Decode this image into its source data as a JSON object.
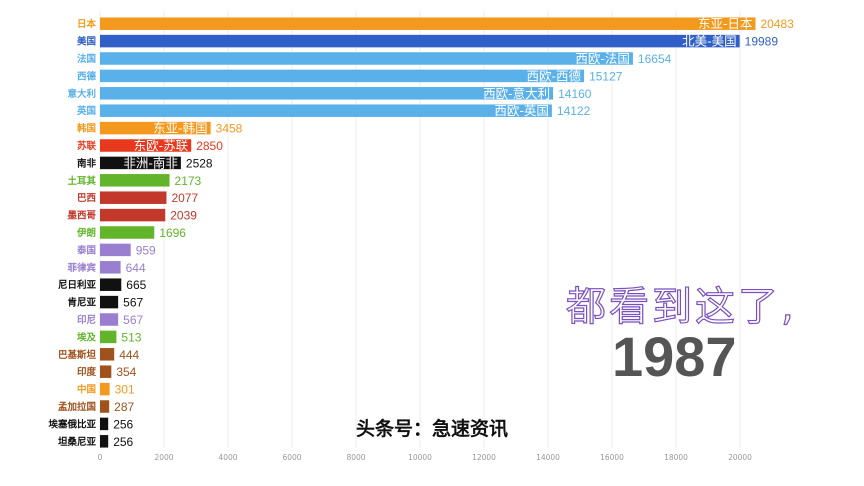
{
  "watermark_text": "都看到这了,",
  "year": "1987",
  "source_credit": "头条号：急速资讯",
  "chart_data": {
    "type": "bar",
    "orientation": "horizontal",
    "xlim": [
      0,
      20000
    ],
    "xticks": [
      0,
      2000,
      4000,
      6000,
      8000,
      10000,
      12000,
      14000,
      16000,
      18000,
      20000
    ],
    "grid": true,
    "bars": [
      {
        "country": "日本",
        "value": 20483,
        "region_label": "东亚-日本",
        "color": "#f39a1e"
      },
      {
        "country": "美国",
        "value": 19989,
        "region_label": "北美-美国",
        "color": "#2f5fc7"
      },
      {
        "country": "法国",
        "value": 16654,
        "region_label": "西欧-法国",
        "color": "#5ab1ea"
      },
      {
        "country": "西德",
        "value": 15127,
        "region_label": "西欧-西德",
        "color": "#5ab1ea"
      },
      {
        "country": "意大利",
        "value": 14160,
        "region_label": "西欧-意大利",
        "color": "#5ab1ea"
      },
      {
        "country": "英国",
        "value": 14122,
        "region_label": "西欧-英国",
        "color": "#5ab1ea"
      },
      {
        "country": "韩国",
        "value": 3458,
        "region_label": "东亚-韩国",
        "color": "#f39a1e"
      },
      {
        "country": "苏联",
        "value": 2850,
        "region_label": "东欧-苏联",
        "color": "#e8391e"
      },
      {
        "country": "南非",
        "value": 2528,
        "region_label": "非洲-南非",
        "color": "#111111"
      },
      {
        "country": "土耳其",
        "value": 2173,
        "region_label": "",
        "color": "#62b52a"
      },
      {
        "country": "巴西",
        "value": 2077,
        "region_label": "",
        "color": "#c2392b"
      },
      {
        "country": "墨西哥",
        "value": 2039,
        "region_label": "",
        "color": "#c2392b"
      },
      {
        "country": "伊朗",
        "value": 1696,
        "region_label": "",
        "color": "#62b52a"
      },
      {
        "country": "泰国",
        "value": 959,
        "region_label": "",
        "color": "#9a7fd0"
      },
      {
        "country": "菲律宾",
        "value": 644,
        "region_label": "",
        "color": "#9a7fd0"
      },
      {
        "country": "尼日利亚",
        "value": 665,
        "region_label": "",
        "color": "#111111"
      },
      {
        "country": "肯尼亚",
        "value": 567,
        "region_label": "",
        "color": "#111111"
      },
      {
        "country": "印尼",
        "value": 567,
        "region_label": "",
        "color": "#9a7fd0"
      },
      {
        "country": "埃及",
        "value": 513,
        "region_label": "",
        "color": "#62b52a"
      },
      {
        "country": "巴基斯坦",
        "value": 444,
        "region_label": "",
        "color": "#a0521d"
      },
      {
        "country": "印度",
        "value": 354,
        "region_label": "",
        "color": "#a0521d"
      },
      {
        "country": "中国",
        "value": 301,
        "region_label": "",
        "color": "#f39a1e"
      },
      {
        "country": "孟加拉国",
        "value": 287,
        "region_label": "",
        "color": "#a0521d"
      },
      {
        "country": "埃塞俄比亚",
        "value": 256,
        "region_label": "",
        "color": "#111111"
      },
      {
        "country": "坦桑尼亚",
        "value": 256,
        "region_label": "",
        "color": "#111111"
      }
    ]
  }
}
